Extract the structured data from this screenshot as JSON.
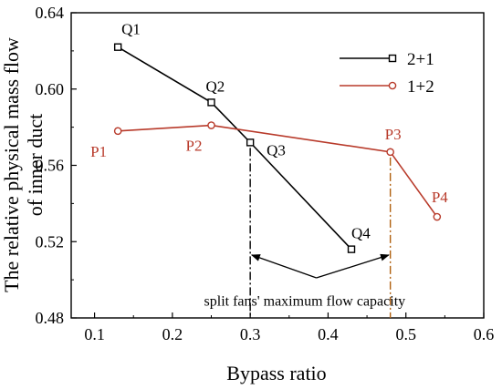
{
  "chart_data": {
    "type": "line",
    "xlabel": "Bypass ratio",
    "ylabel_lines": [
      "The relative physical mass flow",
      "of inner duct"
    ],
    "xlim": [
      0.07,
      0.6
    ],
    "ylim": [
      0.48,
      0.64
    ],
    "xticks": [
      0.1,
      0.2,
      0.3,
      0.4,
      0.5,
      0.6
    ],
    "yticks": [
      0.48,
      0.52,
      0.56,
      0.6,
      0.64
    ],
    "x_tick_labels": [
      "0.1",
      "0.2",
      "0.3",
      "0.4",
      "0.5",
      "0.6"
    ],
    "y_tick_labels": [
      "0.48",
      "0.52",
      "0.56",
      "0.60",
      "0.64"
    ],
    "legend_position": "top-right",
    "series": [
      {
        "name": "2+1",
        "color": "#000000",
        "marker": "square",
        "x": [
          0.13,
          0.25,
          0.3,
          0.43
        ],
        "y": [
          0.622,
          0.593,
          0.572,
          0.516
        ],
        "point_labels": [
          "Q1",
          "Q2",
          "Q3",
          "Q4"
        ]
      },
      {
        "name": "1+2",
        "color": "#b83a2a",
        "marker": "circle",
        "x": [
          0.13,
          0.25,
          0.48,
          0.54
        ],
        "y": [
          0.578,
          0.581,
          0.567,
          0.533
        ],
        "point_labels": [
          "P1",
          "P2",
          "P3",
          "P4"
        ]
      }
    ],
    "reference_lines": [
      {
        "x": 0.3,
        "y_top": 0.572,
        "color": "#000000"
      },
      {
        "x": 0.48,
        "y_top": 0.567,
        "color": "#b06010"
      }
    ],
    "annotation": {
      "text": "split fans' maximum flow capacity",
      "arrow_origin": {
        "x": 0.385,
        "y": 0.501
      },
      "arrow_targets": [
        {
          "x": 0.302,
          "y": 0.513
        },
        {
          "x": 0.478,
          "y": 0.513
        }
      ]
    }
  }
}
